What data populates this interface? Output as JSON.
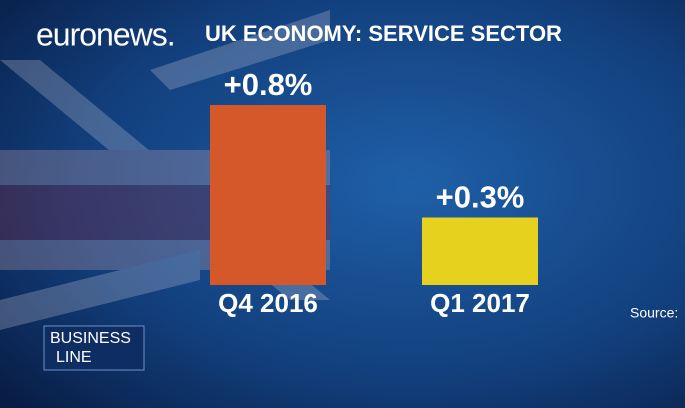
{
  "chart_data": {
    "type": "bar",
    "title": "UK ECONOMY: SERVICE SECTOR",
    "brand": "euronews.",
    "programme": [
      "BUSINESS",
      "LINE"
    ],
    "source": "Source:",
    "categories": [
      "Q4 2016",
      "Q1 2017"
    ],
    "values": [
      0.8,
      0.3
    ],
    "value_labels": [
      "+0.8%",
      "+0.3%"
    ],
    "colors": [
      "#d4582a",
      "#e6d21e"
    ]
  }
}
